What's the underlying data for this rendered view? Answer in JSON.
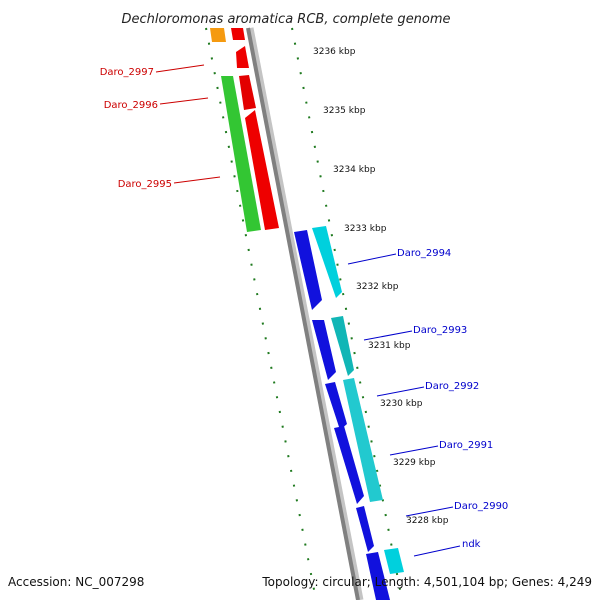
{
  "title": "Dechloromonas aromatica RCB, complete genome",
  "footer": {
    "accession": "Accession: NC_007298",
    "topology": "Topology: circular; Length: 4,501,104 bp; Genes: 4,249"
  },
  "colors": {
    "backbone": "#9a9a9a",
    "forward_gene": "#ee0000",
    "forward_orf": "#22bb22",
    "reverse_gene": "#1010dd",
    "reverse_orf": "#00c8d8",
    "label_forward": "#cc0000",
    "label_reverse": "#0000cc",
    "ticks": "#1f7a1f"
  },
  "scale_labels": [
    "3236 kbp",
    "3235 kbp",
    "3234 kbp",
    "3233 kbp",
    "3232 kbp",
    "3231 kbp",
    "3230 kbp",
    "3229 kbp",
    "3228 kbp"
  ],
  "gene_labels": [
    {
      "text": "Daro_2997",
      "strand": "forward"
    },
    {
      "text": "Daro_2996",
      "strand": "forward"
    },
    {
      "text": "Daro_2995",
      "strand": "forward"
    },
    {
      "text": "Daro_2994",
      "strand": "reverse"
    },
    {
      "text": "Daro_2993",
      "strand": "reverse"
    },
    {
      "text": "Daro_2992",
      "strand": "reverse"
    },
    {
      "text": "Daro_2991",
      "strand": "reverse"
    },
    {
      "text": "Daro_2990",
      "strand": "reverse"
    },
    {
      "text": "ndk",
      "strand": "reverse"
    }
  ]
}
